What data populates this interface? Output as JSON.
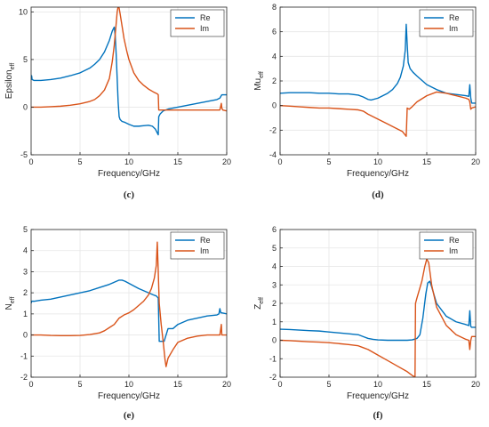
{
  "colors": {
    "re": "#0072BD",
    "im": "#D95319",
    "grid": "#e6e6e6",
    "axis": "#262626"
  },
  "chart_data": [
    {
      "type": "line",
      "panel_label": "(c)",
      "ylabel_main": "Epsilon",
      "ylabel_sub": "eff",
      "xlabel": "Frequency/GHz",
      "xlim": [
        0,
        20
      ],
      "ylim": [
        -5,
        10.5
      ],
      "xticks": [
        0,
        5,
        10,
        15,
        20
      ],
      "yticks": [
        -5,
        0,
        5,
        10
      ],
      "grid": true,
      "legend": "top-right",
      "series": [
        {
          "name": "Re",
          "color_key": "re",
          "x": [
            0,
            0.05,
            0.1,
            0.3,
            1,
            2,
            3,
            4,
            5,
            6,
            6.5,
            7,
            7.5,
            8,
            8.3,
            8.5,
            8.6,
            8.7,
            8.8,
            8.9,
            9,
            9.1,
            9.3,
            9.6,
            10,
            10.5,
            11,
            11.5,
            12,
            12.4,
            12.7,
            12.9,
            13,
            13.05,
            13.2,
            13.5,
            14,
            15,
            16,
            17,
            18,
            19,
            19.3,
            19.5,
            19.6,
            19.8,
            20
          ],
          "y": [
            3.0,
            3.3,
            2.9,
            2.8,
            2.8,
            2.9,
            3.05,
            3.3,
            3.6,
            4.1,
            4.5,
            5.0,
            5.8,
            7.0,
            8.0,
            8.4,
            7.5,
            5.5,
            3.0,
            0.5,
            -1.0,
            -1.3,
            -1.5,
            -1.6,
            -1.8,
            -2.0,
            -2.0,
            -1.95,
            -1.9,
            -2.0,
            -2.3,
            -2.7,
            -2.9,
            -1.0,
            -0.7,
            -0.4,
            -0.2,
            0,
            0.2,
            0.4,
            0.6,
            0.8,
            0.95,
            1.3,
            1.3,
            1.3,
            1.3
          ]
        },
        {
          "name": "Im",
          "color_key": "im",
          "x": [
            0,
            1,
            2,
            3,
            4,
            5,
            6,
            6.5,
            7,
            7.5,
            8,
            8.3,
            8.5,
            8.7,
            8.8,
            8.9,
            9,
            9.1,
            9.3,
            9.5,
            9.8,
            10,
            10.5,
            11,
            11.5,
            12,
            12.5,
            12.9,
            13,
            13.05,
            13.5,
            14,
            15,
            16,
            17,
            18,
            19,
            19.3,
            19.45,
            19.5,
            19.6,
            20
          ],
          "y": [
            0,
            0,
            0.05,
            0.1,
            0.2,
            0.35,
            0.6,
            0.8,
            1.2,
            1.8,
            3.0,
            4.8,
            6.5,
            8.8,
            10.0,
            10.6,
            10.4,
            9.8,
            8.5,
            7.2,
            5.8,
            5.0,
            3.6,
            2.8,
            2.3,
            1.9,
            1.6,
            1.4,
            1.3,
            -0.3,
            -0.3,
            -0.3,
            -0.3,
            -0.3,
            -0.3,
            -0.3,
            -0.3,
            -0.3,
            0.4,
            -0.1,
            -0.3,
            -0.4
          ]
        }
      ]
    },
    {
      "type": "line",
      "panel_label": "(d)",
      "ylabel_main": "Mu",
      "ylabel_sub": "eff",
      "xlabel": "Frequency/GHz",
      "xlim": [
        0,
        20
      ],
      "ylim": [
        -4,
        8
      ],
      "xticks": [
        0,
        5,
        10,
        15,
        20
      ],
      "yticks": [
        -4,
        -2,
        0,
        2,
        4,
        6,
        8
      ],
      "grid": true,
      "legend": "top-right",
      "series": [
        {
          "name": "Re",
          "color_key": "re",
          "x": [
            0,
            1,
            2,
            3,
            4,
            5,
            6,
            7,
            8,
            8.5,
            9,
            9.3,
            10,
            11,
            11.5,
            12,
            12.3,
            12.6,
            12.8,
            12.9,
            13,
            13.1,
            13.3,
            13.6,
            14,
            15,
            16,
            17,
            18,
            19,
            19.3,
            19.4,
            19.5,
            19.6,
            19.8,
            20
          ],
          "y": [
            1.0,
            1.05,
            1.05,
            1.05,
            1.0,
            1.0,
            0.95,
            0.95,
            0.85,
            0.7,
            0.5,
            0.45,
            0.6,
            1.0,
            1.3,
            1.8,
            2.3,
            3.2,
            4.5,
            6.6,
            5.0,
            3.5,
            3.0,
            2.7,
            2.4,
            1.7,
            1.3,
            1.0,
            0.9,
            0.8,
            0.75,
            1.7,
            0.6,
            0.2,
            0.2,
            0.2
          ]
        },
        {
          "name": "Im",
          "color_key": "im",
          "x": [
            0,
            1,
            2,
            3,
            4,
            5,
            6,
            7,
            8,
            8.5,
            9,
            9.5,
            10,
            11,
            12,
            12.5,
            12.8,
            12.9,
            13,
            13.2,
            13.5,
            14,
            15,
            16,
            17,
            18,
            19,
            19.3,
            19.4,
            19.5,
            19.6,
            20
          ],
          "y": [
            0,
            -0.05,
            -0.1,
            -0.15,
            -0.2,
            -0.2,
            -0.25,
            -0.3,
            -0.35,
            -0.45,
            -0.7,
            -0.9,
            -1.1,
            -1.5,
            -1.9,
            -2.1,
            -2.4,
            -2.5,
            -0.2,
            -0.3,
            -0.1,
            0.3,
            0.8,
            1.1,
            1.0,
            0.8,
            0.6,
            0.5,
            0.3,
            -0.3,
            -0.2,
            -0.1
          ]
        }
      ]
    },
    {
      "type": "line",
      "panel_label": "(e)",
      "ylabel_main": "N",
      "ylabel_sub": "eff",
      "xlabel": "Frequency/GHz",
      "xlim": [
        0,
        20
      ],
      "ylim": [
        -2,
        5
      ],
      "xticks": [
        0,
        5,
        10,
        15,
        20
      ],
      "yticks": [
        -2,
        -1,
        0,
        1,
        2,
        3,
        4,
        5
      ],
      "grid": true,
      "legend": "top-right",
      "series": [
        {
          "name": "Re",
          "color_key": "re",
          "x": [
            0,
            0.05,
            0.1,
            0.3,
            1,
            2,
            3,
            4,
            5,
            6,
            7,
            8,
            8.5,
            9,
            9.3,
            9.6,
            10,
            11,
            12,
            12.5,
            12.8,
            13,
            13.1,
            13.3,
            13.6,
            14,
            14.5,
            15,
            16,
            17,
            18,
            19,
            19.2,
            19.3,
            19.4,
            19.5,
            20
          ],
          "y": [
            1.5,
            1.6,
            1.6,
            1.6,
            1.65,
            1.7,
            1.8,
            1.9,
            2.0,
            2.1,
            2.25,
            2.4,
            2.5,
            2.6,
            2.6,
            2.55,
            2.45,
            2.2,
            2.0,
            1.9,
            1.85,
            1.75,
            -0.3,
            -0.3,
            -0.3,
            0.3,
            0.3,
            0.5,
            0.7,
            0.8,
            0.9,
            0.95,
            1.0,
            1.25,
            1.05,
            1.05,
            1.0
          ]
        },
        {
          "name": "Im",
          "color_key": "im",
          "x": [
            0,
            1,
            2,
            3,
            4,
            5,
            6,
            7,
            7.5,
            8,
            8.5,
            9,
            9.5,
            10,
            10.5,
            11,
            11.5,
            12,
            12.3,
            12.6,
            12.8,
            12.9,
            13,
            13.1,
            13.3,
            13.5,
            13.7,
            13.8,
            14,
            14.5,
            15,
            16,
            17,
            18,
            19,
            19.3,
            19.45,
            19.5,
            19.6,
            20
          ],
          "y": [
            0,
            0,
            -0.02,
            -0.03,
            -0.03,
            -0.02,
            0.02,
            0.1,
            0.2,
            0.35,
            0.5,
            0.8,
            0.95,
            1.05,
            1.2,
            1.4,
            1.6,
            1.9,
            2.2,
            2.7,
            3.3,
            4.4,
            3.0,
            1.5,
            0.5,
            -0.3,
            -1.2,
            -1.5,
            -1.1,
            -0.7,
            -0.35,
            -0.15,
            -0.05,
            0,
            0,
            0,
            0.5,
            0,
            0,
            0
          ]
        }
      ]
    },
    {
      "type": "line",
      "panel_label": "(f)",
      "ylabel_main": "Z",
      "ylabel_sub": "eff",
      "xlabel": "Frequency/GHz",
      "xlim": [
        0,
        20
      ],
      "ylim": [
        -2,
        6
      ],
      "xticks": [
        0,
        5,
        10,
        15,
        20
      ],
      "yticks": [
        -2,
        -1,
        0,
        1,
        2,
        3,
        4,
        5,
        6
      ],
      "grid": true,
      "legend": "top-right",
      "series": [
        {
          "name": "Re",
          "color_key": "re",
          "x": [
            0,
            1,
            2,
            3,
            4,
            5,
            6,
            7,
            8,
            8.5,
            9,
            9.5,
            10,
            11,
            12,
            13,
            13.5,
            14,
            14.3,
            14.6,
            14.9,
            15.1,
            15.3,
            15.5,
            16,
            17,
            18,
            19,
            19.3,
            19.4,
            19.5,
            19.6,
            20
          ],
          "y": [
            0.6,
            0.58,
            0.55,
            0.52,
            0.5,
            0.45,
            0.4,
            0.35,
            0.3,
            0.2,
            0.1,
            0.05,
            0.02,
            0,
            0,
            0,
            0.02,
            0.1,
            0.3,
            1.2,
            2.5,
            3.1,
            3.2,
            2.9,
            2.0,
            1.3,
            1.0,
            0.85,
            0.8,
            1.6,
            0.75,
            0.7,
            0.7
          ]
        },
        {
          "name": "Im",
          "color_key": "im",
          "x": [
            0,
            1,
            2,
            3,
            4,
            5,
            6,
            7,
            8,
            8.5,
            9,
            10,
            11,
            12,
            13,
            13.5,
            13.8,
            13.85,
            14,
            14.5,
            14.8,
            15,
            15.2,
            15.5,
            16,
            17,
            18,
            19,
            19.3,
            19.4,
            19.5,
            19.6,
            20
          ],
          "y": [
            0,
            -0.02,
            -0.05,
            -0.08,
            -0.1,
            -0.13,
            -0.18,
            -0.23,
            -0.3,
            -0.4,
            -0.5,
            -0.8,
            -1.1,
            -1.4,
            -1.7,
            -1.9,
            -2.0,
            2.0,
            2.3,
            3.2,
            4.0,
            4.4,
            4.2,
            3.0,
            1.8,
            0.8,
            0.3,
            0.05,
            0,
            -0.5,
            0,
            0.2,
            0.2
          ]
        }
      ]
    }
  ]
}
